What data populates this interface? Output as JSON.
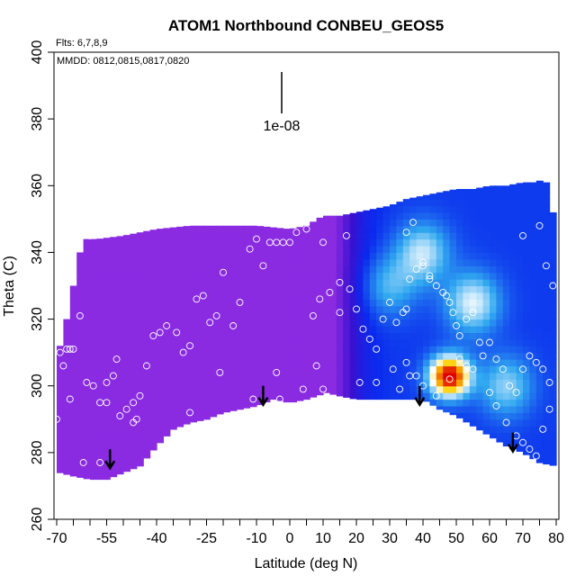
{
  "chart_data": {
    "type": "heatmap",
    "title": "ATOM1 Northbound CONBEU_GEOS5",
    "annotations": {
      "flights": "Flts: 6,7,8,9",
      "dates": "MMDD: 0812,0815,0817,0820",
      "scale_label": "1e-08"
    },
    "xlabel": "Latitude (deg N)",
    "ylabel": "Theta (C)",
    "xlim": [
      -70,
      80
    ],
    "ylim": [
      260,
      400
    ],
    "x_ticks": [
      -70,
      -55,
      -40,
      -25,
      -10,
      0,
      10,
      20,
      30,
      40,
      50,
      60,
      70,
      80
    ],
    "x_minor_ticks": [
      -65,
      -60,
      -50,
      -45,
      -35,
      -30,
      -20,
      -15,
      -5,
      5,
      15,
      25,
      35,
      45,
      55,
      65,
      75
    ],
    "y_ticks": [
      260,
      280,
      300,
      320,
      340,
      360,
      380,
      400
    ],
    "grid": false,
    "colors": {
      "low": "#8a2be2",
      "mid_low": "#3a10d0",
      "mid": "#0a2aee",
      "light": "#30a8f0",
      "high_edge": "#ffffff",
      "high": "#ffd000",
      "peak": "#e00000"
    },
    "top_boundary": [
      [
        -69,
        312
      ],
      [
        -67,
        320
      ],
      [
        -65,
        330
      ],
      [
        -63,
        340
      ],
      [
        -61,
        344
      ],
      [
        -58,
        344
      ],
      [
        -50,
        345
      ],
      [
        -40,
        347
      ],
      [
        -30,
        348
      ],
      [
        -20,
        348
      ],
      [
        -10,
        348
      ],
      [
        0,
        347
      ],
      [
        5,
        348
      ],
      [
        10,
        351
      ],
      [
        15,
        351
      ],
      [
        20,
        352
      ],
      [
        25,
        353
      ],
      [
        30,
        354
      ],
      [
        35,
        356
      ],
      [
        40,
        357
      ],
      [
        45,
        358
      ],
      [
        50,
        359
      ],
      [
        55,
        359
      ],
      [
        60,
        360
      ],
      [
        65,
        360
      ],
      [
        70,
        361
      ],
      [
        74,
        361
      ],
      [
        76,
        362
      ],
      [
        78,
        360
      ],
      [
        79,
        352
      ],
      [
        80,
        344
      ],
      [
        80,
        300
      ],
      [
        80,
        278
      ]
    ],
    "bottom_boundary": [
      [
        -69,
        274
      ],
      [
        -65,
        273
      ],
      [
        -60,
        272
      ],
      [
        -55,
        272
      ],
      [
        -50,
        274
      ],
      [
        -45,
        276
      ],
      [
        -40,
        282
      ],
      [
        -35,
        287
      ],
      [
        -30,
        289
      ],
      [
        -25,
        290
      ],
      [
        -20,
        292
      ],
      [
        -15,
        293
      ],
      [
        -10,
        294
      ],
      [
        -5,
        296
      ],
      [
        0,
        295
      ],
      [
        5,
        296
      ],
      [
        11,
        298
      ],
      [
        15,
        297
      ],
      [
        20,
        296
      ],
      [
        25,
        296
      ],
      [
        30,
        296
      ],
      [
        35,
        296
      ],
      [
        40,
        296
      ],
      [
        45,
        293
      ],
      [
        50,
        291
      ],
      [
        55,
        288
      ],
      [
        60,
        285
      ],
      [
        65,
        282
      ],
      [
        70,
        280
      ],
      [
        75,
        277
      ],
      [
        80,
        276
      ]
    ],
    "points": [
      [
        -69,
        310
      ],
      [
        -68,
        306
      ],
      [
        -67,
        311
      ],
      [
        -66,
        311
      ],
      [
        -65,
        311
      ],
      [
        -63,
        321
      ],
      [
        -61,
        301
      ],
      [
        -59,
        300
      ],
      [
        -57,
        295
      ],
      [
        -55,
        295
      ],
      [
        -53,
        303
      ],
      [
        -52,
        308
      ],
      [
        -51,
        291
      ],
      [
        -49,
        293
      ],
      [
        -47,
        295
      ],
      [
        -46,
        290
      ],
      [
        -45,
        297
      ],
      [
        -43,
        306
      ],
      [
        -41,
        315
      ],
      [
        -39,
        316
      ],
      [
        -37,
        318
      ],
      [
        -34,
        316
      ],
      [
        -32,
        310
      ],
      [
        -30,
        312
      ],
      [
        -28,
        326
      ],
      [
        -26,
        327
      ],
      [
        -24,
        319
      ],
      [
        -22,
        321
      ],
      [
        -20,
        334
      ],
      [
        -17,
        318
      ],
      [
        -15,
        325
      ],
      [
        -12,
        341
      ],
      [
        -10,
        344
      ],
      [
        -8,
        336
      ],
      [
        -6,
        343
      ],
      [
        -4,
        343
      ],
      [
        -2,
        343
      ],
      [
        0,
        343
      ],
      [
        2,
        346
      ],
      [
        5,
        347
      ],
      [
        -11,
        296
      ],
      [
        -3,
        296
      ],
      [
        4,
        299
      ],
      [
        10,
        299
      ],
      [
        -70,
        290
      ],
      [
        -66,
        296
      ],
      [
        -62,
        277
      ],
      [
        -57,
        277
      ],
      [
        -68,
        343
      ],
      [
        -60,
        345
      ],
      [
        7,
        321
      ],
      [
        9,
        326
      ],
      [
        12,
        328
      ],
      [
        15,
        331
      ],
      [
        18,
        329
      ],
      [
        20,
        323
      ],
      [
        22,
        317
      ],
      [
        24,
        314
      ],
      [
        26,
        311
      ],
      [
        28,
        320
      ],
      [
        30,
        325
      ],
      [
        32,
        319
      ],
      [
        34,
        322
      ],
      [
        35,
        323
      ],
      [
        36,
        332
      ],
      [
        38,
        335
      ],
      [
        40,
        337
      ],
      [
        42,
        333
      ],
      [
        44,
        330
      ],
      [
        46,
        328
      ],
      [
        47,
        327
      ],
      [
        48,
        325
      ],
      [
        49,
        322
      ],
      [
        50,
        318
      ],
      [
        51,
        315
      ],
      [
        53,
        320
      ],
      [
        55,
        322
      ],
      [
        57,
        313
      ],
      [
        58,
        309
      ],
      [
        60,
        313
      ],
      [
        62,
        308
      ],
      [
        64,
        305
      ],
      [
        66,
        300
      ],
      [
        68,
        298
      ],
      [
        70,
        305
      ],
      [
        72,
        309
      ],
      [
        74,
        307
      ],
      [
        76,
        305
      ],
      [
        78,
        301
      ],
      [
        35,
        346
      ],
      [
        37,
        349
      ],
      [
        40,
        336
      ],
      [
        42,
        332
      ],
      [
        10,
        343
      ],
      [
        17,
        345
      ],
      [
        15,
        322
      ],
      [
        21,
        301
      ],
      [
        26,
        301
      ],
      [
        31,
        305
      ],
      [
        35,
        307
      ],
      [
        33,
        299
      ],
      [
        36,
        303
      ],
      [
        38,
        303
      ],
      [
        40,
        300
      ],
      [
        44,
        297
      ],
      [
        48,
        302
      ],
      [
        51,
        308
      ],
      [
        53,
        306
      ],
      [
        55,
        305
      ],
      [
        60,
        298
      ],
      [
        62,
        294
      ],
      [
        65,
        289
      ],
      [
        68,
        285
      ],
      [
        70,
        283
      ],
      [
        72,
        281
      ],
      [
        74,
        279
      ],
      [
        76,
        287
      ],
      [
        78,
        293
      ],
      [
        79,
        330
      ],
      [
        77,
        336
      ],
      [
        70,
        345
      ],
      [
        75,
        348
      ],
      [
        8,
        306
      ],
      [
        -4,
        304
      ],
      [
        -21,
        304
      ],
      [
        -47,
        289
      ],
      [
        -35,
        284
      ],
      [
        -30,
        292
      ],
      [
        -55,
        301
      ]
    ],
    "arrows": [
      [
        -54,
        281
      ],
      [
        -8,
        300
      ],
      [
        39,
        300
      ],
      [
        67,
        286
      ]
    ],
    "hotspots": [
      {
        "lat": 48,
        "theta": 303,
        "value": 1.0
      },
      {
        "lat": 55,
        "theta": 325,
        "value": 0.42
      },
      {
        "lat": 40,
        "theta": 340,
        "value": 0.38
      },
      {
        "lat": 65,
        "theta": 300,
        "value": 0.32
      },
      {
        "lat": 30,
        "theta": 330,
        "value": 0.25
      }
    ]
  }
}
